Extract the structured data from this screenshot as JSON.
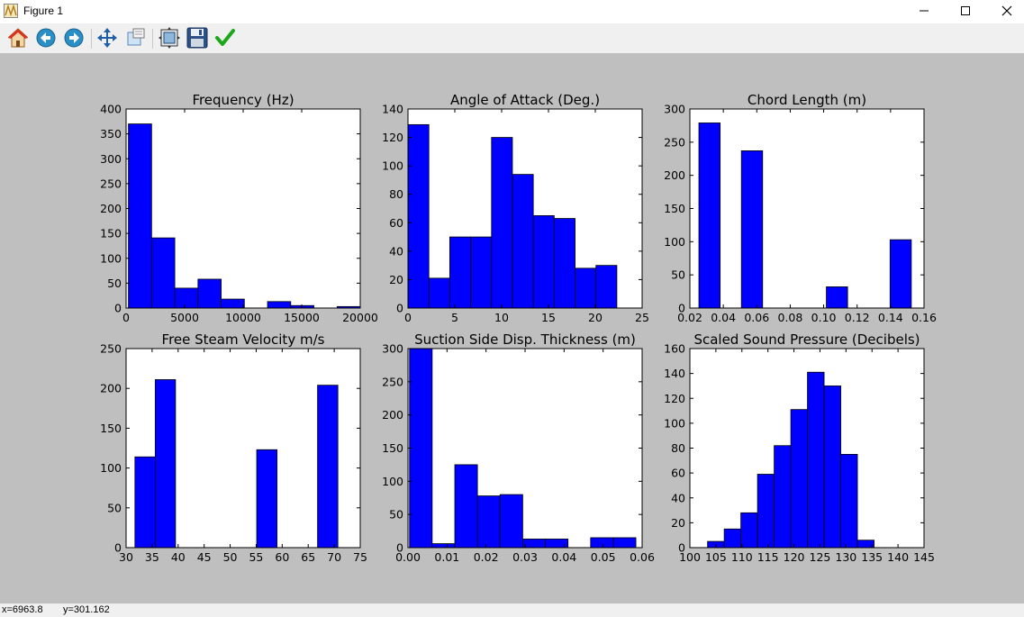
{
  "window": {
    "title": "Figure 1",
    "controls": {
      "minimize": "minimize-icon",
      "maximize": "maximize-icon",
      "close": "close-icon"
    }
  },
  "toolbar": {
    "buttons": [
      {
        "name": "home-button",
        "icon": "home-icon"
      },
      {
        "name": "back-button",
        "icon": "back-arrow-icon"
      },
      {
        "name": "forward-button",
        "icon": "forward-arrow-icon"
      },
      {
        "name": "pan-button",
        "icon": "move-icon"
      },
      {
        "name": "zoom-button",
        "icon": "zoom-rect-icon"
      },
      {
        "name": "configure-subplots-button",
        "icon": "subplots-icon"
      },
      {
        "name": "save-button",
        "icon": "floppy-disk-icon"
      },
      {
        "name": "edit-axes-button",
        "icon": "checkmark-icon"
      }
    ]
  },
  "status": {
    "x": "x=6963.8",
    "y": "y=301.162"
  },
  "colors": {
    "bar": "#0000ff",
    "canvas": "#bfbfbf",
    "axes_bg": "#ffffff"
  },
  "chart_data": [
    {
      "type": "bar",
      "title": "Frequency (Hz)",
      "xlim": [
        0,
        20000
      ],
      "ylim": [
        0,
        400
      ],
      "xticks": [
        "0",
        "5000",
        "10000",
        "15000",
        "20000"
      ],
      "yticks": [
        "0",
        "50",
        "100",
        "150",
        "200",
        "250",
        "300",
        "350",
        "400"
      ],
      "bin_edges": [
        200,
        2180,
        4160,
        6140,
        8120,
        10100,
        12080,
        14060,
        16040,
        18020,
        20000
      ],
      "values": [
        370,
        141,
        40,
        58,
        18,
        0,
        13,
        5,
        0,
        3
      ]
    },
    {
      "type": "bar",
      "title": "Angle of Attack (Deg.)",
      "xlim": [
        0,
        25
      ],
      "ylim": [
        0,
        140
      ],
      "xticks": [
        "0",
        "5",
        "10",
        "15",
        "20",
        "25"
      ],
      "yticks": [
        "0",
        "20",
        "40",
        "60",
        "80",
        "100",
        "120",
        "140"
      ],
      "bin_edges": [
        0,
        2.23,
        4.46,
        6.69,
        8.92,
        11.15,
        13.38,
        15.61,
        17.84,
        20.07,
        22.3
      ],
      "values": [
        129,
        21,
        50,
        50,
        120,
        94,
        65,
        63,
        28,
        30
      ]
    },
    {
      "type": "bar",
      "title": "Chord Length (m)",
      "xlim": [
        0.02,
        0.16
      ],
      "ylim": [
        0,
        300
      ],
      "xticks": [
        "0.02",
        "0.04",
        "0.06",
        "0.08",
        "0.10",
        "0.12",
        "0.14",
        "0.16"
      ],
      "yticks": [
        "0",
        "50",
        "100",
        "150",
        "200",
        "250",
        "300"
      ],
      "bin_edges": [
        0.0254,
        0.0381,
        0.0508,
        0.0635,
        0.0762,
        0.0889,
        0.1016,
        0.1143,
        0.127,
        0.1397,
        0.1524
      ],
      "values": [
        279,
        0,
        237,
        0,
        0,
        0,
        32,
        0,
        0,
        103
      ]
    },
    {
      "type": "bar",
      "title": "Free Steam Velocity m/s",
      "xlim": [
        30,
        75
      ],
      "ylim": [
        0,
        250
      ],
      "xticks": [
        "30",
        "35",
        "40",
        "45",
        "50",
        "55",
        "60",
        "65",
        "70",
        "75"
      ],
      "yticks": [
        "0",
        "50",
        "100",
        "150",
        "200",
        "250"
      ],
      "bin_edges": [
        31.7,
        35.6,
        39.5,
        43.4,
        47.3,
        51.2,
        55.1,
        59,
        62.9,
        66.8,
        70.7
      ],
      "values": [
        114,
        211,
        0,
        0,
        0,
        0,
        123,
        0,
        0,
        204
      ]
    },
    {
      "type": "bar",
      "title": "Suction Side Disp. Thickness (m)",
      "xlim": [
        0,
        0.06
      ],
      "ylim": [
        0,
        300
      ],
      "xticks": [
        "0.00",
        "0.01",
        "0.02",
        "0.03",
        "0.04",
        "0.05",
        "0.06"
      ],
      "yticks": [
        "0",
        "50",
        "100",
        "150",
        "200",
        "250",
        "300"
      ],
      "bin_edges": [
        0.0004,
        0.0062,
        0.012,
        0.0178,
        0.0236,
        0.0294,
        0.0352,
        0.041,
        0.0468,
        0.0526,
        0.0584
      ],
      "values": [
        300,
        6,
        125,
        78,
        80,
        13,
        13,
        0,
        15,
        15
      ]
    },
    {
      "type": "bar",
      "title": "Scaled Sound Pressure (Decibels)",
      "xlim": [
        100,
        145
      ],
      "ylim": [
        0,
        160
      ],
      "xticks": [
        "100",
        "105",
        "110",
        "115",
        "120",
        "125",
        "130",
        "135",
        "140",
        "145"
      ],
      "yticks": [
        "0",
        "20",
        "40",
        "60",
        "80",
        "100",
        "120",
        "140",
        "160"
      ],
      "bin_edges": [
        103.4,
        106.6,
        109.8,
        113.0,
        116.2,
        119.4,
        122.6,
        125.8,
        129.0,
        132.2,
        135.4,
        138.6,
        141.8
      ],
      "values": [
        5,
        15,
        28,
        59,
        82,
        111,
        141,
        130,
        75,
        6,
        0,
        0
      ]
    }
  ]
}
